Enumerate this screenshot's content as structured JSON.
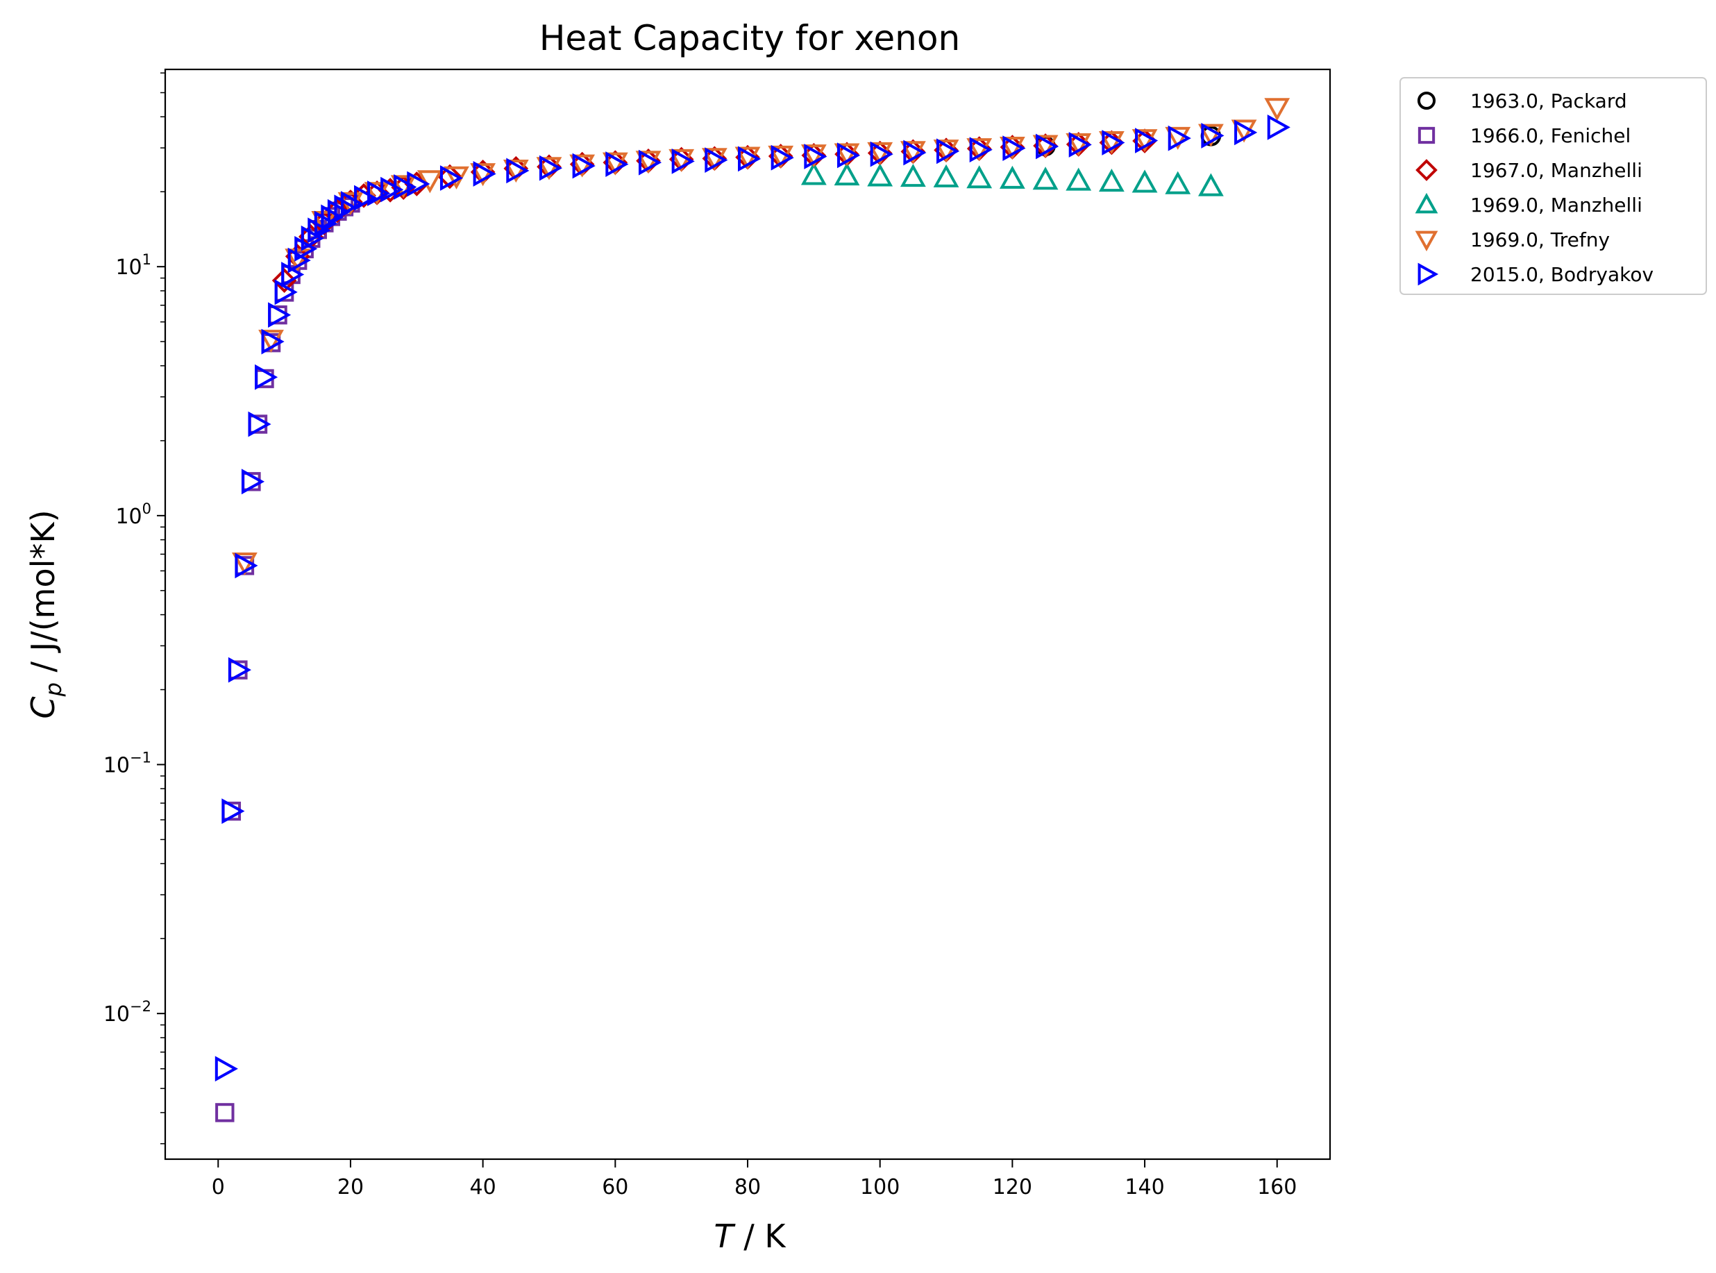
{
  "chart_data": {
    "type": "scatter",
    "title": "Heat Capacity for xenon",
    "xlabel_var": "T",
    "xlabel_unit": " / K",
    "ylabel_var": "C",
    "ylabel_sub": "p",
    "ylabel_unit": " / J/(mol*K)",
    "xlim": [
      -8,
      168
    ],
    "ylim": [
      0.0026,
      62
    ],
    "yscale": "log",
    "grid": false,
    "legend_position": "outside-top-right",
    "xticks": [
      0,
      20,
      40,
      60,
      80,
      100,
      120,
      140,
      160
    ],
    "xtick_labels": [
      "0",
      "20",
      "40",
      "60",
      "80",
      "100",
      "120",
      "140",
      "160"
    ],
    "yticks": [
      0.01,
      0.1,
      1,
      10
    ],
    "ytick_bases": [
      "10",
      "10",
      "10",
      "10"
    ],
    "ytick_exps": [
      "−2",
      "−1",
      "0",
      "1"
    ],
    "series": [
      {
        "name": "1963.0, Packard",
        "marker": "circle",
        "color": "#000000",
        "x": [
          125,
          150
        ],
        "y": [
          30.5,
          33.5
        ]
      },
      {
        "name": "1966.0, Fenichel",
        "marker": "square",
        "color": "#7030a0",
        "x": [
          1,
          2,
          3,
          4,
          5,
          6,
          7,
          8,
          9,
          10,
          11,
          12,
          13,
          14,
          15,
          16,
          17,
          18,
          19,
          20
        ],
        "y": [
          0.004,
          0.065,
          0.24,
          0.63,
          1.37,
          2.33,
          3.55,
          4.95,
          6.4,
          7.9,
          9.3,
          10.6,
          11.8,
          13.0,
          14.1,
          15.0,
          15.9,
          16.7,
          17.4,
          18.0
        ]
      },
      {
        "name": "1967.0, Manzhelli",
        "marker": "diamond",
        "color": "#c00000",
        "x": [
          10,
          12,
          14,
          16,
          18,
          20,
          22,
          24,
          26,
          28,
          30,
          35,
          40,
          45,
          50,
          55,
          60,
          65,
          70,
          75,
          80,
          85,
          90,
          95,
          100,
          105,
          110,
          115,
          120,
          125,
          130,
          135,
          140
        ],
        "y": [
          8.8,
          11.0,
          13.2,
          15.0,
          16.8,
          18.2,
          19.3,
          19.8,
          20.3,
          20.8,
          21.5,
          23.0,
          24.0,
          24.8,
          25.2,
          25.8,
          26.2,
          26.6,
          27.0,
          27.2,
          27.5,
          27.8,
          28.0,
          28.3,
          28.6,
          29.0,
          29.4,
          29.8,
          30.2,
          30.6,
          31.0,
          31.5,
          32.0
        ]
      },
      {
        "name": "1969.0, Manzhelli",
        "marker": "triangle-up",
        "color": "#00a08a",
        "x": [
          90,
          95,
          100,
          105,
          110,
          115,
          120,
          125,
          130,
          135,
          140,
          145,
          150
        ],
        "y": [
          23.3,
          23.2,
          23.0,
          22.9,
          22.8,
          22.6,
          22.5,
          22.3,
          22.1,
          21.9,
          21.7,
          21.4,
          21.0
        ]
      },
      {
        "name": "1969.0, Trefny",
        "marker": "triangle-down",
        "color": "#e07030",
        "x": [
          4,
          8,
          12,
          16,
          20,
          24,
          28,
          32,
          36,
          40,
          45,
          50,
          55,
          60,
          65,
          70,
          75,
          80,
          85,
          90,
          95,
          100,
          105,
          110,
          115,
          120,
          125,
          130,
          135,
          140,
          145,
          150,
          155,
          160
        ],
        "y": [
          0.65,
          5.1,
          10.8,
          15.3,
          18.2,
          20.0,
          21.3,
          22.3,
          23.1,
          23.8,
          24.6,
          25.2,
          25.8,
          26.3,
          26.7,
          27.1,
          27.4,
          27.7,
          28.0,
          28.3,
          28.6,
          28.9,
          29.2,
          29.6,
          30.0,
          30.4,
          30.9,
          31.4,
          32.0,
          32.6,
          33.3,
          34.2,
          35.6,
          43.5
        ]
      },
      {
        "name": "2015.0, Bodryakov",
        "marker": "triangle-right",
        "color": "#0000ff",
        "x": [
          1,
          2,
          3,
          4,
          5,
          6,
          7,
          8,
          9,
          10,
          11,
          12,
          13,
          14,
          15,
          16,
          17,
          18,
          19,
          20,
          22,
          24,
          26,
          28,
          30,
          35,
          40,
          45,
          50,
          55,
          60,
          65,
          70,
          75,
          80,
          85,
          90,
          95,
          100,
          105,
          110,
          115,
          120,
          125,
          130,
          135,
          140,
          145,
          150,
          155,
          160
        ],
        "y": [
          0.006,
          0.065,
          0.24,
          0.63,
          1.37,
          2.33,
          3.6,
          5.0,
          6.4,
          7.9,
          9.3,
          10.6,
          11.8,
          13.0,
          14.0,
          14.9,
          15.8,
          16.6,
          17.3,
          17.9,
          18.9,
          19.7,
          20.4,
          20.9,
          21.5,
          22.7,
          23.6,
          24.3,
          24.9,
          25.4,
          25.8,
          26.2,
          26.5,
          26.8,
          27.1,
          27.4,
          27.7,
          28.0,
          28.3,
          28.7,
          29.1,
          29.5,
          29.9,
          30.4,
          30.9,
          31.5,
          32.1,
          32.8,
          33.6,
          34.6,
          36.3
        ]
      }
    ]
  }
}
